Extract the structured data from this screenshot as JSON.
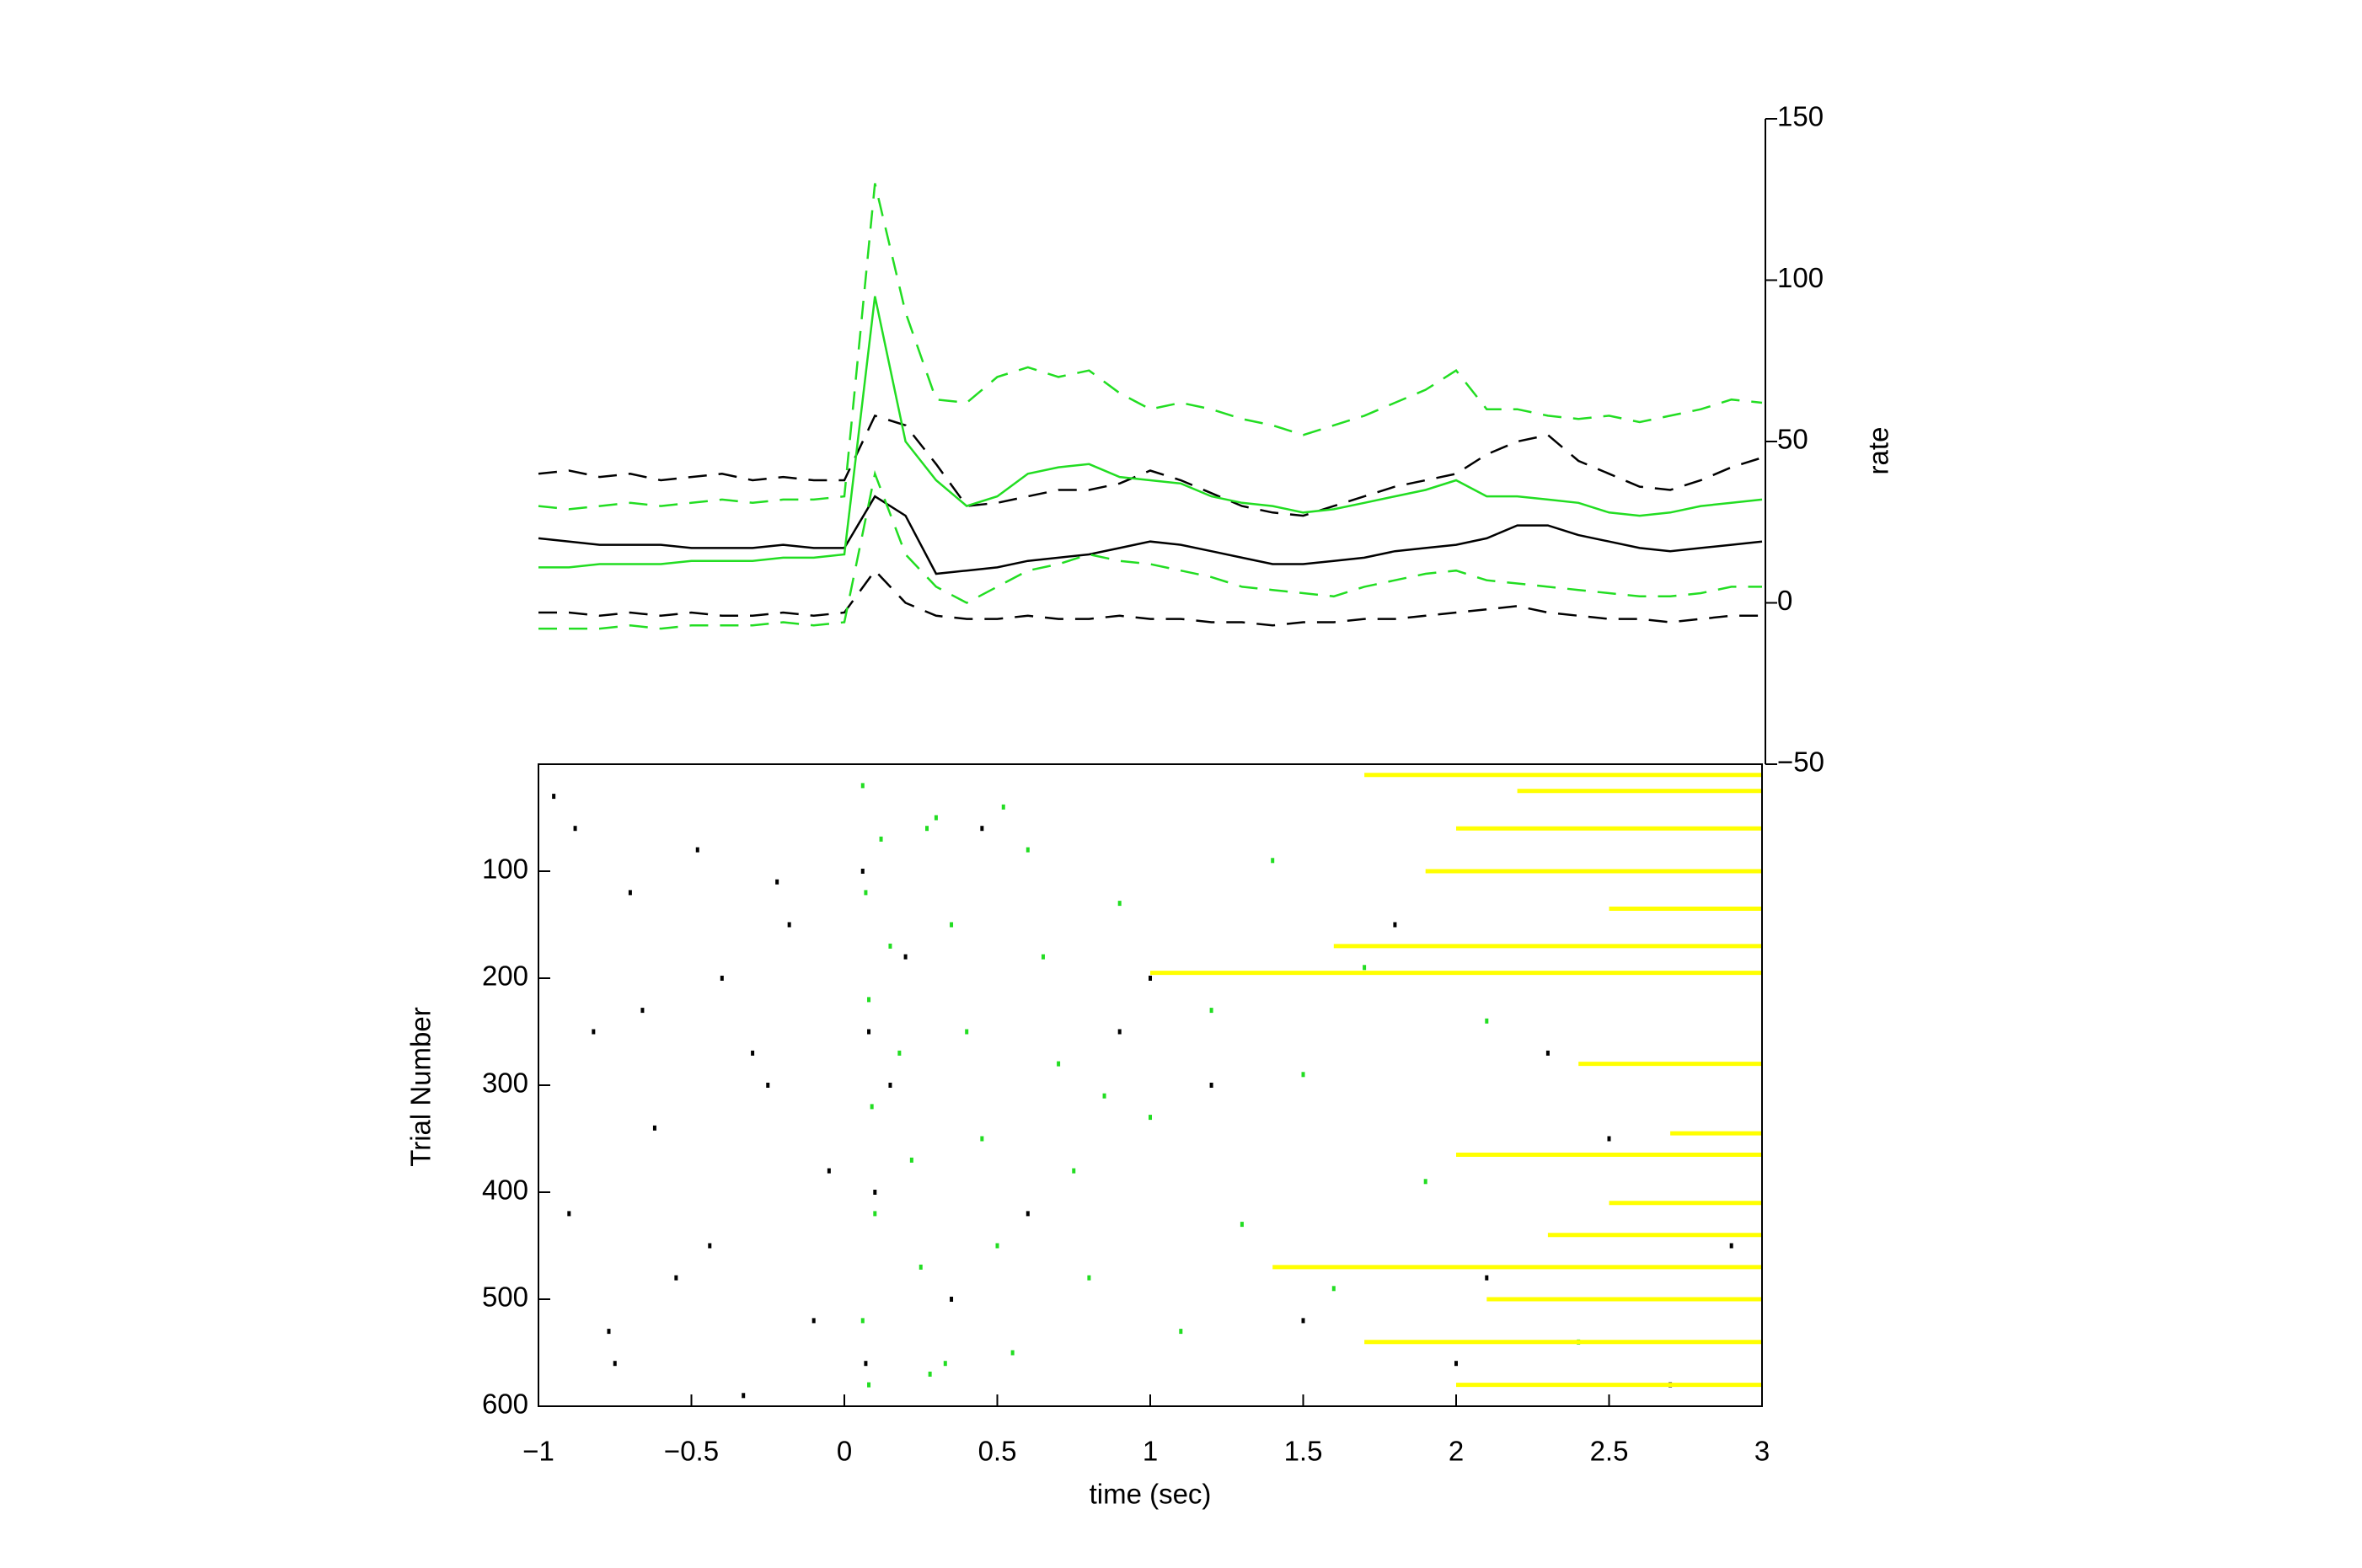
{
  "chart_data": [
    {
      "type": "line",
      "ylabel": "rate",
      "xlim": [
        -1,
        3
      ],
      "ylim": [
        -50,
        150
      ],
      "yticks": [
        {
          "value": -50,
          "label": "−50"
        },
        0,
        50,
        100,
        150
      ],
      "x": [
        -1,
        -0.9,
        -0.8,
        -0.7,
        -0.6,
        -0.5,
        -0.4,
        -0.3,
        -0.2,
        -0.1,
        0,
        0.1,
        0.2,
        0.3,
        0.4,
        0.5,
        0.6,
        0.7,
        0.8,
        0.9,
        1,
        1.1,
        1.2,
        1.3,
        1.4,
        1.5,
        1.6,
        1.7,
        1.8,
        1.9,
        2,
        2.1,
        2.2,
        2.3,
        2.4,
        2.5,
        2.6,
        2.7,
        2.8,
        2.9,
        3
      ],
      "series": [
        {
          "color": "#000000",
          "linestyle": "solid",
          "values": [
            20,
            19,
            18,
            18,
            18,
            17,
            17,
            17,
            18,
            17,
            17,
            33,
            27,
            9,
            10,
            11,
            13,
            14,
            15,
            17,
            19,
            18,
            16,
            14,
            12,
            12,
            13,
            14,
            16,
            17,
            18,
            20,
            24,
            24,
            21,
            19,
            17,
            16,
            17,
            18,
            19
          ]
        },
        {
          "color": "#000000",
          "linestyle": "dashed",
          "values": [
            40,
            41,
            39,
            40,
            38,
            39,
            40,
            38,
            39,
            38,
            38,
            58,
            55,
            43,
            30,
            31,
            33,
            35,
            35,
            37,
            41,
            38,
            34,
            30,
            28,
            27,
            30,
            33,
            36,
            38,
            40,
            46,
            50,
            52,
            44,
            40,
            36,
            35,
            38,
            42,
            45
          ]
        },
        {
          "color": "#000000",
          "linestyle": "dashed",
          "values": [
            -3,
            -3,
            -4,
            -3,
            -4,
            -3,
            -4,
            -4,
            -3,
            -4,
            -3,
            10,
            0,
            -4,
            -5,
            -5,
            -4,
            -5,
            -5,
            -4,
            -5,
            -5,
            -6,
            -6,
            -7,
            -6,
            -6,
            -5,
            -5,
            -4,
            -3,
            -2,
            -1,
            -3,
            -4,
            -5,
            -5,
            -6,
            -5,
            -4,
            -4
          ]
        },
        {
          "color": "#22dd22",
          "linestyle": "solid",
          "values": [
            11,
            11,
            12,
            12,
            12,
            13,
            13,
            13,
            14,
            14,
            15,
            95,
            50,
            38,
            30,
            33,
            40,
            42,
            43,
            39,
            38,
            37,
            33,
            31,
            30,
            28,
            29,
            31,
            33,
            35,
            38,
            33,
            33,
            32,
            31,
            28,
            27,
            28,
            30,
            31,
            32
          ]
        },
        {
          "color": "#22dd22",
          "linestyle": "dashed",
          "values": [
            30,
            29,
            30,
            31,
            30,
            31,
            32,
            31,
            32,
            32,
            33,
            130,
            90,
            63,
            62,
            70,
            73,
            70,
            72,
            65,
            60,
            62,
            60,
            57,
            55,
            52,
            55,
            58,
            62,
            66,
            72,
            60,
            60,
            58,
            57,
            58,
            56,
            58,
            60,
            63,
            62
          ]
        },
        {
          "color": "#22dd22",
          "linestyle": "dashed",
          "values": [
            -8,
            -8,
            -8,
            -7,
            -8,
            -7,
            -7,
            -7,
            -6,
            -7,
            -6,
            40,
            15,
            5,
            0,
            5,
            10,
            12,
            15,
            13,
            12,
            10,
            8,
            5,
            4,
            3,
            2,
            5,
            7,
            9,
            10,
            7,
            6,
            5,
            4,
            3,
            2,
            2,
            3,
            5,
            5
          ]
        }
      ]
    },
    {
      "type": "raster",
      "xlabel": "time (sec)",
      "ylabel": "Trial Number",
      "xlim": [
        -1,
        3
      ],
      "xticks": [
        {
          "value": -1,
          "label": "−1"
        },
        {
          "value": -0.5,
          "label": "−0.5"
        },
        0,
        0.5,
        1,
        1.5,
        2,
        2.5,
        3
      ],
      "ylim": [
        0,
        600
      ],
      "yticks": [
        100,
        200,
        300,
        400,
        500,
        600
      ],
      "yreversed": true,
      "series": [
        {
          "color": "#000000",
          "x": [
            -0.95,
            -0.9,
            -0.82,
            -0.75,
            -0.7,
            -0.62,
            -0.55,
            -0.48,
            -0.4,
            -0.33,
            -0.25,
            -0.18,
            -0.1,
            -0.05,
            -0.88,
            -0.66,
            -0.44,
            -0.22,
            -0.77,
            -0.3,
            0.06,
            0.08,
            0.1,
            0.07,
            0.15,
            0.2,
            0.35,
            0.6,
            0.9,
            1.2,
            1.5,
            1.8,
            2.1,
            2.3,
            2.5,
            2.7,
            0.45,
            1.0,
            2.0,
            2.9
          ],
          "values": [
            30,
            420,
            250,
            560,
            120,
            340,
            480,
            80,
            200,
            590,
            300,
            150,
            520,
            380,
            60,
            230,
            450,
            110,
            530,
            270,
            100,
            250,
            400,
            560,
            300,
            180,
            500,
            420,
            250,
            300,
            520,
            150,
            480,
            270,
            350,
            580,
            60,
            200,
            560,
            450
          ]
        },
        {
          "color": "#22dd22",
          "x": [
            0.06,
            0.07,
            0.08,
            0.09,
            0.1,
            0.06,
            0.08,
            0.12,
            0.15,
            0.18,
            0.22,
            0.25,
            0.28,
            0.3,
            0.35,
            0.4,
            0.45,
            0.5,
            0.55,
            0.6,
            0.65,
            0.7,
            0.75,
            0.8,
            0.9,
            1.0,
            1.1,
            1.2,
            1.3,
            1.4,
            1.5,
            1.6,
            1.7,
            1.9,
            2.1,
            2.4,
            0.27,
            0.33,
            0.52,
            0.85
          ],
          "values": [
            20,
            120,
            220,
            320,
            420,
            520,
            580,
            70,
            170,
            270,
            370,
            470,
            570,
            50,
            150,
            250,
            350,
            450,
            550,
            80,
            180,
            280,
            380,
            480,
            130,
            330,
            530,
            230,
            430,
            90,
            290,
            490,
            190,
            390,
            240,
            540,
            60,
            560,
            40,
            310
          ]
        },
        {
          "color": "#ffff00",
          "marker": "segment",
          "x": [
            1.7,
            2.2,
            2.0,
            1.9,
            2.5,
            1.6,
            1.0,
            2.4,
            2.7,
            2.0,
            2.5,
            2.3,
            1.4,
            2.1,
            1.7,
            2.0
          ],
          "values": [
            10,
            25,
            60,
            100,
            135,
            170,
            195,
            280,
            345,
            365,
            410,
            440,
            470,
            500,
            540,
            580
          ]
        }
      ]
    }
  ]
}
